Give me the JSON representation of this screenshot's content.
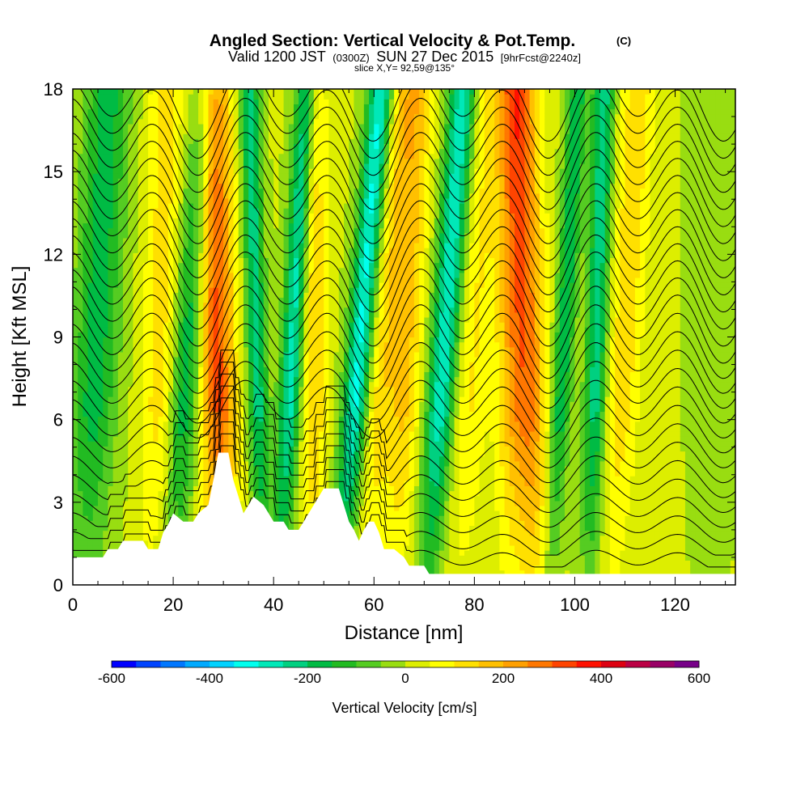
{
  "chart_data": {
    "type": "heatmap",
    "title": "Angled Section: Vertical Velocity & Pot.Temp.",
    "title_mark": "(C)",
    "subtitle": {
      "valid_prefix": "Valid 1200 JST",
      "utc": "(0300Z)",
      "date": "SUN 27 Dec 2015",
      "forecast": "[9hrFcst@2240z]"
    },
    "slice_text": "slice X,Y= 92,59@135°",
    "xlabel": "Distance [nm]",
    "ylabel": "Height [Kft MSL]",
    "xlim": [
      0,
      132
    ],
    "ylim": [
      0,
      18
    ],
    "x_ticks": [
      0,
      20,
      40,
      60,
      80,
      100,
      120
    ],
    "y_ticks": [
      0,
      3,
      6,
      9,
      12,
      15,
      18
    ],
    "colorbar": {
      "label": "Vertical Velocity [cm/s]",
      "range": [
        -600,
        600
      ],
      "step": 50,
      "tick_values": [
        -600,
        -400,
        -200,
        0,
        200,
        400,
        600
      ],
      "colors": [
        "#0000ff",
        "#0044ff",
        "#0077ff",
        "#00aaff",
        "#00d2ff",
        "#00ffee",
        "#00e8b8",
        "#00d080",
        "#00bb44",
        "#22bb22",
        "#55cc22",
        "#99dd11",
        "#ddee00",
        "#ffff00",
        "#ffe000",
        "#ffc000",
        "#ffa000",
        "#ff7700",
        "#ff4400",
        "#ff1100",
        "#dd0011",
        "#bb0044",
        "#990066",
        "#770088"
      ]
    },
    "velocity_bands": [
      {
        "x_center": 4,
        "slope": 0.25,
        "width": 4.5,
        "amplitude": -180
      },
      {
        "x_center": 17,
        "slope": 0.15,
        "width": 3.5,
        "amplitude": 120
      },
      {
        "x_center": 22,
        "slope": 0.35,
        "width": 3.0,
        "amplitude": -200
      },
      {
        "x_center": 29,
        "slope": -0.1,
        "width": 3.5,
        "amplitude": 310
      },
      {
        "x_center": 37,
        "slope": -0.15,
        "width": 2.0,
        "amplitude": -230
      },
      {
        "x_center": 43,
        "slope": 0.3,
        "width": 2.2,
        "amplitude": -280
      },
      {
        "x_center": 48,
        "slope": 0.0,
        "width": 2.5,
        "amplitude": 150
      },
      {
        "x_center": 56,
        "slope": 0.45,
        "width": 2.5,
        "amplitude": -320
      },
      {
        "x_center": 61,
        "slope": 0.4,
        "width": 3.0,
        "amplitude": 130
      },
      {
        "x_center": 66,
        "slope": 0.25,
        "width": 3.0,
        "amplitude": 150
      },
      {
        "x_center": 73,
        "slope": 0.4,
        "width": 2.8,
        "amplitude": -300
      },
      {
        "x_center": 79,
        "slope": 0.3,
        "width": 3.5,
        "amplitude": 100
      },
      {
        "x_center": 87,
        "slope": 0.0,
        "width": 3.0,
        "amplitude": 130
      },
      {
        "x_center": 91,
        "slope": -0.15,
        "width": 3.5,
        "amplitude": 260
      },
      {
        "x_center": 97,
        "slope": 0.3,
        "width": 2.0,
        "amplitude": -200
      },
      {
        "x_center": 104,
        "slope": 0.15,
        "width": 2.2,
        "amplitude": -240
      },
      {
        "x_center": 109,
        "slope": 0.3,
        "width": 3.5,
        "amplitude": 130
      },
      {
        "x_center": 127,
        "slope": 0.0,
        "width": 4.0,
        "amplitude": -40
      }
    ],
    "background_velocity": 5,
    "terrain": [
      [
        0,
        1.0
      ],
      [
        6,
        1.0
      ],
      [
        7,
        1.3
      ],
      [
        9,
        1.3
      ],
      [
        10,
        1.6
      ],
      [
        14,
        1.6
      ],
      [
        15,
        1.3
      ],
      [
        17,
        1.3
      ],
      [
        18,
        1.9
      ],
      [
        19,
        2.2
      ],
      [
        20,
        2.6
      ],
      [
        22,
        2.3
      ],
      [
        24,
        2.3
      ],
      [
        25,
        2.6
      ],
      [
        27,
        2.9
      ],
      [
        28,
        3.8
      ],
      [
        29,
        4.8
      ],
      [
        31,
        4.8
      ],
      [
        32,
        3.8
      ],
      [
        33,
        3.2
      ],
      [
        34,
        2.6
      ],
      [
        35,
        2.9
      ],
      [
        36,
        3.2
      ],
      [
        38,
        2.9
      ],
      [
        40,
        2.3
      ],
      [
        42,
        2.3
      ],
      [
        43,
        2.0
      ],
      [
        45,
        2.0
      ],
      [
        46,
        2.3
      ],
      [
        48,
        2.9
      ],
      [
        50,
        3.5
      ],
      [
        53,
        3.5
      ],
      [
        54,
        2.9
      ],
      [
        55,
        2.3
      ],
      [
        56,
        2.0
      ],
      [
        57,
        1.6
      ],
      [
        58,
        2.0
      ],
      [
        59,
        2.3
      ],
      [
        60,
        2.3
      ],
      [
        61,
        1.9
      ],
      [
        62,
        1.3
      ],
      [
        64,
        1.3
      ],
      [
        66,
        1.0
      ],
      [
        67,
        0.7
      ],
      [
        70,
        0.7
      ],
      [
        71,
        0.4
      ],
      [
        132,
        0.4
      ]
    ],
    "isentropes": {
      "count": 28,
      "base_height": 0.9,
      "spacing": 0.62,
      "label": "8"
    }
  }
}
